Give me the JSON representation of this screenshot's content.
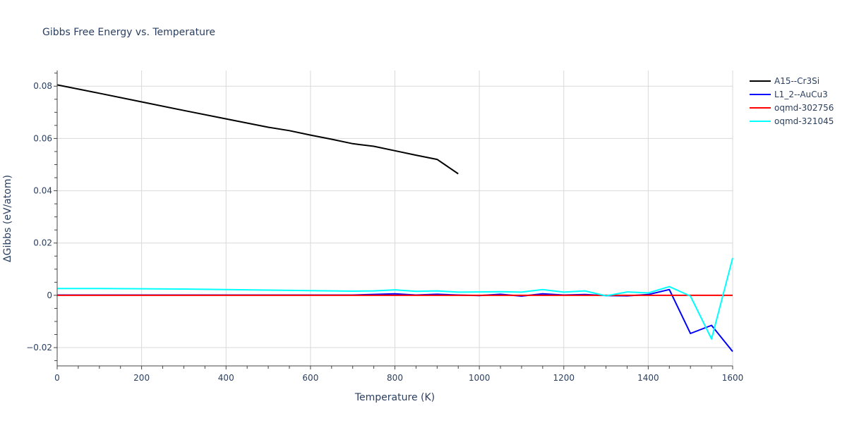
{
  "chart_data": {
    "type": "line",
    "title": "Gibbs Free Energy vs. Temperature",
    "xlabel": "Temperature (K)",
    "ylabel": "ΔGibbs (eV/atom)",
    "xlim": [
      0,
      1600
    ],
    "ylim": [
      -0.027,
      0.086
    ],
    "xticks": [
      0,
      200,
      400,
      600,
      800,
      1000,
      1200,
      1400,
      1600
    ],
    "xtick_labels": [
      "0",
      "200",
      "400",
      "600",
      "800",
      "1000",
      "1200",
      "1400",
      "1600"
    ],
    "yticks": [
      -0.02,
      0,
      0.02,
      0.04,
      0.06,
      0.08
    ],
    "ytick_labels": [
      "−0.02",
      "0",
      "0.02",
      "0.04",
      "0.06",
      "0.08"
    ],
    "grid": true,
    "legend_position": "top-right",
    "series": [
      {
        "name": "A15--Cr3Si",
        "color": "#000000",
        "x": [
          0,
          100,
          200,
          300,
          400,
          500,
          550,
          600,
          650,
          700,
          750,
          800,
          850,
          900,
          950
        ],
        "y": [
          0.0805,
          0.0773,
          0.074,
          0.0707,
          0.0675,
          0.0643,
          0.063,
          0.0613,
          0.0597,
          0.058,
          0.057,
          0.0553,
          0.0536,
          0.052,
          0.0465
        ]
      },
      {
        "name": "L1_2--AuCu3",
        "color": "#0000ff",
        "x": [
          0,
          100,
          200,
          300,
          400,
          500,
          600,
          700,
          800,
          850,
          900,
          950,
          1000,
          1050,
          1100,
          1150,
          1200,
          1250,
          1300,
          1350,
          1400,
          1450,
          1500,
          1550,
          1600
        ],
        "y": [
          0.0001,
          0.0001,
          0.0001,
          0.0001,
          0.0001,
          0.0001,
          0.0001,
          0.0001,
          0.0006,
          0.0001,
          0.0004,
          0.0001,
          -0.0001,
          0.0004,
          -0.0003,
          0.0006,
          0.0001,
          0.0003,
          -0.0001,
          -0.0002,
          0.0003,
          0.0022,
          -0.0146,
          -0.0115,
          -0.0215
        ]
      },
      {
        "name": "oqmd-302756",
        "color": "#ff0000",
        "x": [
          0,
          200,
          400,
          600,
          800,
          1000,
          1200,
          1400,
          1600
        ],
        "y": [
          0,
          0,
          0,
          0,
          0,
          0,
          0,
          0,
          0
        ]
      },
      {
        "name": "oqmd-321045",
        "color": "#00ffff",
        "x": [
          0,
          100,
          200,
          300,
          400,
          500,
          600,
          700,
          750,
          800,
          850,
          900,
          950,
          1000,
          1050,
          1100,
          1150,
          1200,
          1250,
          1300,
          1350,
          1400,
          1450,
          1500,
          1550,
          1600
        ],
        "y": [
          0.0026,
          0.0026,
          0.0025,
          0.0024,
          0.0022,
          0.002,
          0.0018,
          0.0016,
          0.0017,
          0.0021,
          0.0015,
          0.0017,
          0.0012,
          0.0013,
          0.0014,
          0.0012,
          0.0022,
          0.0012,
          0.0017,
          -0.0002,
          0.0013,
          0.0009,
          0.0033,
          -0.0003,
          -0.0167,
          0.0143
        ]
      }
    ]
  }
}
